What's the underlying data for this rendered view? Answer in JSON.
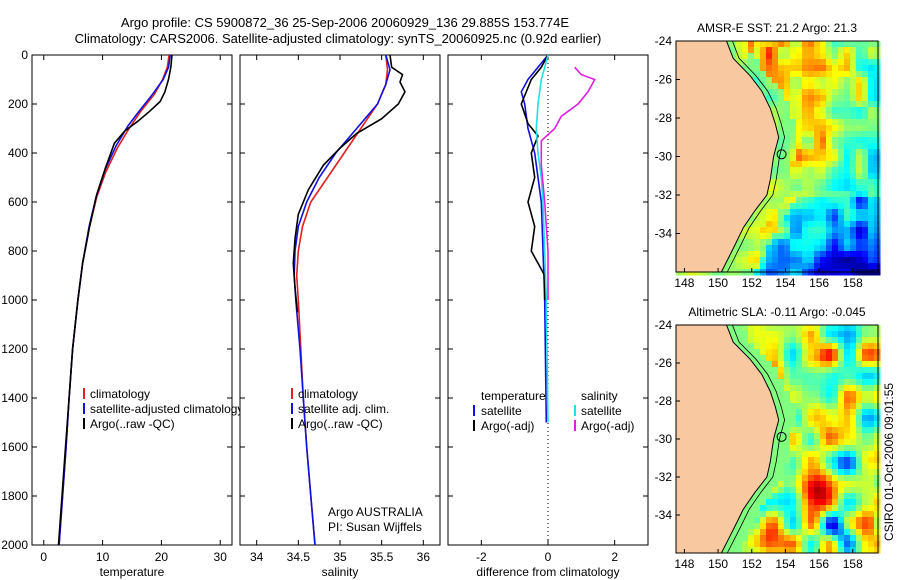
{
  "header": {
    "line1": "Argo profile: CS 5900872_36 25-Sep-2006 20060929_136 29.885S 153.774E",
    "line2": "Climatology: CARS2006. Satellite-adjusted climatology: synTS_20060925.nc (0.92d earlier)"
  },
  "side_label": "CSIRO 01-Oct-2006 09:01:55",
  "colors": {
    "red": "#e02020",
    "blue": "#1010e0",
    "black": "#000000",
    "cyan": "#20e0e8",
    "magenta": "#e020e0",
    "land": "#f8c8a0"
  },
  "chart_data": [
    {
      "type": "line",
      "id": "temperature",
      "xlabel": "temperature",
      "ylim": [
        2000,
        0
      ],
      "xlim": [
        -2,
        32
      ],
      "xticks": [
        0,
        10,
        20,
        30
      ],
      "yticks": [
        0,
        200,
        400,
        600,
        800,
        1000,
        1200,
        1400,
        1600,
        1800,
        2000
      ],
      "legend": [
        "climatology",
        "satellite-adjusted climatology",
        "Argo(..raw -QC)"
      ],
      "series": [
        {
          "name": "climatology",
          "color": "red",
          "points": [
            [
              21.3,
              0
            ],
            [
              21.0,
              50
            ],
            [
              20.2,
              100
            ],
            [
              18.8,
              160
            ],
            [
              16.5,
              230
            ],
            [
              14.5,
              300
            ],
            [
              12.5,
              380
            ],
            [
              10.5,
              480
            ],
            [
              9.0,
              580
            ],
            [
              7.8,
              700
            ],
            [
              6.6,
              850
            ],
            [
              5.8,
              1000
            ],
            [
              4.9,
              1200
            ],
            [
              4.3,
              1400
            ],
            [
              3.8,
              1600
            ],
            [
              3.2,
              1800
            ],
            [
              2.6,
              2000
            ]
          ]
        },
        {
          "name": "satellite-adjusted climatology",
          "color": "blue",
          "points": [
            [
              21.5,
              0
            ],
            [
              21.2,
              50
            ],
            [
              20.3,
              100
            ],
            [
              18.5,
              160
            ],
            [
              16.2,
              230
            ],
            [
              14.3,
              290
            ],
            [
              12.3,
              370
            ],
            [
              10.4,
              470
            ],
            [
              8.9,
              580
            ],
            [
              7.7,
              700
            ],
            [
              6.6,
              850
            ],
            [
              5.8,
              1000
            ],
            [
              4.9,
              1200
            ],
            [
              4.3,
              1400
            ],
            [
              3.8,
              1600
            ],
            [
              3.2,
              1800
            ],
            [
              2.6,
              2000
            ]
          ]
        },
        {
          "name": "Argo(..raw -QC)",
          "color": "black",
          "points": [
            [
              21.8,
              0
            ],
            [
              21.6,
              50
            ],
            [
              21.2,
              100
            ],
            [
              20.6,
              150
            ],
            [
              19.8,
              190
            ],
            [
              18.0,
              230
            ],
            [
              16.0,
              270
            ],
            [
              13.8,
              310
            ],
            [
              12.0,
              360
            ],
            [
              10.5,
              460
            ],
            [
              9.0,
              570
            ],
            [
              7.8,
              700
            ],
            [
              6.6,
              850
            ],
            [
              5.8,
              1000
            ],
            [
              4.9,
              1200
            ],
            [
              4.3,
              1400
            ],
            [
              3.7,
              1600
            ],
            [
              3.1,
              1800
            ],
            [
              2.5,
              2000
            ]
          ]
        }
      ]
    },
    {
      "type": "line",
      "id": "salinity",
      "xlabel": "salinity",
      "ylim": [
        2000,
        0
      ],
      "xlim": [
        33.8,
        36.2
      ],
      "xticks": [
        34,
        34.5,
        35,
        35.5,
        36
      ],
      "legend": [
        "climatology",
        "satellite adj. clim.",
        "Argo(..raw -QC)"
      ],
      "annotation": [
        "Argo AUSTRALIA",
        "PI: Susan Wijffels"
      ],
      "series": [
        {
          "name": "climatology",
          "color": "red",
          "points": [
            [
              35.55,
              0
            ],
            [
              35.57,
              60
            ],
            [
              35.55,
              120
            ],
            [
              35.45,
              200
            ],
            [
              35.25,
              300
            ],
            [
              35.05,
              400
            ],
            [
              34.85,
              500
            ],
            [
              34.65,
              600
            ],
            [
              34.55,
              700
            ],
            [
              34.5,
              800
            ],
            [
              34.48,
              900
            ],
            [
              34.5,
              1000
            ],
            [
              34.53,
              1200
            ],
            [
              34.56,
              1400
            ],
            [
              34.6,
              1600
            ],
            [
              34.65,
              1800
            ],
            [
              34.7,
              2000
            ]
          ]
        },
        {
          "name": "satellite adj. clim.",
          "color": "blue",
          "points": [
            [
              35.55,
              0
            ],
            [
              35.6,
              60
            ],
            [
              35.55,
              120
            ],
            [
              35.45,
              200
            ],
            [
              35.2,
              300
            ],
            [
              34.95,
              400
            ],
            [
              34.75,
              500
            ],
            [
              34.6,
              600
            ],
            [
              34.5,
              700
            ],
            [
              34.46,
              800
            ],
            [
              34.45,
              900
            ],
            [
              34.47,
              1000
            ],
            [
              34.52,
              1200
            ],
            [
              34.56,
              1400
            ],
            [
              34.6,
              1600
            ],
            [
              34.65,
              1800
            ],
            [
              34.7,
              2000
            ]
          ]
        },
        {
          "name": "Argo(..raw -QC)",
          "color": "black",
          "points": [
            [
              35.6,
              0
            ],
            [
              35.62,
              50
            ],
            [
              35.75,
              80
            ],
            [
              35.72,
              110
            ],
            [
              35.78,
              150
            ],
            [
              35.7,
              200
            ],
            [
              35.5,
              260
            ],
            [
              35.2,
              320
            ],
            [
              35.0,
              380
            ],
            [
              34.8,
              450
            ],
            [
              34.62,
              550
            ],
            [
              34.5,
              650
            ],
            [
              34.46,
              750
            ],
            [
              34.44,
              850
            ],
            [
              34.46,
              950
            ],
            [
              34.49,
              1050
            ]
          ]
        }
      ]
    },
    {
      "type": "line",
      "id": "difference",
      "xlabel": "difference from climatology",
      "ylim": [
        2000,
        0
      ],
      "xlim": [
        -3,
        3
      ],
      "xticks": [
        -2,
        0,
        2
      ],
      "legend_left": {
        "title": "temperature",
        "items": [
          "satellite",
          "Argo(-adj)"
        ]
      },
      "legend_right": {
        "title": "salinity",
        "items": [
          "satellite",
          "Argo(-adj)"
        ]
      },
      "series": [
        {
          "name": "temperature satellite",
          "color": "blue",
          "points": [
            [
              0,
              0
            ],
            [
              -0.3,
              50
            ],
            [
              -0.6,
              100
            ],
            [
              -0.8,
              150
            ],
            [
              -0.7,
              200
            ],
            [
              -0.6,
              300
            ],
            [
              -0.4,
              400
            ],
            [
              -0.3,
              500
            ],
            [
              -0.2,
              600
            ],
            [
              -0.15,
              800
            ],
            [
              -0.1,
              1000
            ],
            [
              -0.05,
              1500
            ]
          ]
        },
        {
          "name": "temperature Argo(-adj)",
          "color": "black",
          "points": [
            [
              0,
              0
            ],
            [
              -0.2,
              50
            ],
            [
              -0.5,
              100
            ],
            [
              -0.8,
              200
            ],
            [
              -0.6,
              280
            ],
            [
              -0.3,
              330
            ],
            [
              -0.5,
              400
            ],
            [
              -0.4,
              500
            ],
            [
              -0.6,
              600
            ],
            [
              -0.4,
              700
            ],
            [
              -0.5,
              800
            ],
            [
              -0.3,
              850
            ],
            [
              -0.1,
              900
            ],
            [
              -0.1,
              1000
            ]
          ]
        },
        {
          "name": "salinity satellite",
          "color": "cyan",
          "points": [
            [
              0,
              0
            ],
            [
              -0.1,
              50
            ],
            [
              -0.2,
              100
            ],
            [
              -0.3,
              200
            ],
            [
              -0.35,
              300
            ],
            [
              -0.3,
              400
            ],
            [
              -0.2,
              500
            ],
            [
              -0.15,
              600
            ],
            [
              -0.1,
              800
            ],
            [
              -0.05,
              1000
            ],
            [
              0,
              1500
            ]
          ]
        },
        {
          "name": "salinity Argo(-adj)",
          "color": "magenta",
          "points": [
            [
              0.8,
              50
            ],
            [
              1.0,
              80
            ],
            [
              1.4,
              100
            ],
            [
              1.2,
              150
            ],
            [
              0.9,
              200
            ],
            [
              0.4,
              250
            ],
            [
              0.2,
              300
            ],
            [
              -0.2,
              350
            ],
            [
              -0.2,
              450
            ],
            [
              -0.1,
              600
            ],
            [
              0,
              800
            ],
            [
              0,
              1000
            ]
          ]
        }
      ]
    },
    {
      "type": "heatmap",
      "id": "sst-map",
      "title": "AMSR-E SST: 21.2 Argo: 21.3",
      "xticks": [
        148,
        150,
        152,
        154,
        156,
        158
      ],
      "yticks": [
        -24,
        -26,
        -28,
        -30,
        -32,
        -34
      ],
      "xlim": [
        147.5,
        159.5
      ],
      "ylim": [
        -36,
        -24
      ],
      "marker": [
        153.774,
        -29.885
      ]
    },
    {
      "type": "heatmap",
      "id": "sla-map",
      "title": "Altimetric SLA: -0.11 Argo: -0.045",
      "xticks": [
        148,
        150,
        152,
        154,
        156,
        158
      ],
      "yticks": [
        -24,
        -26,
        -28,
        -30,
        -32,
        -34
      ],
      "xlim": [
        147.5,
        159.5
      ],
      "ylim": [
        -36,
        -24
      ],
      "marker": [
        153.774,
        -29.885
      ]
    }
  ]
}
